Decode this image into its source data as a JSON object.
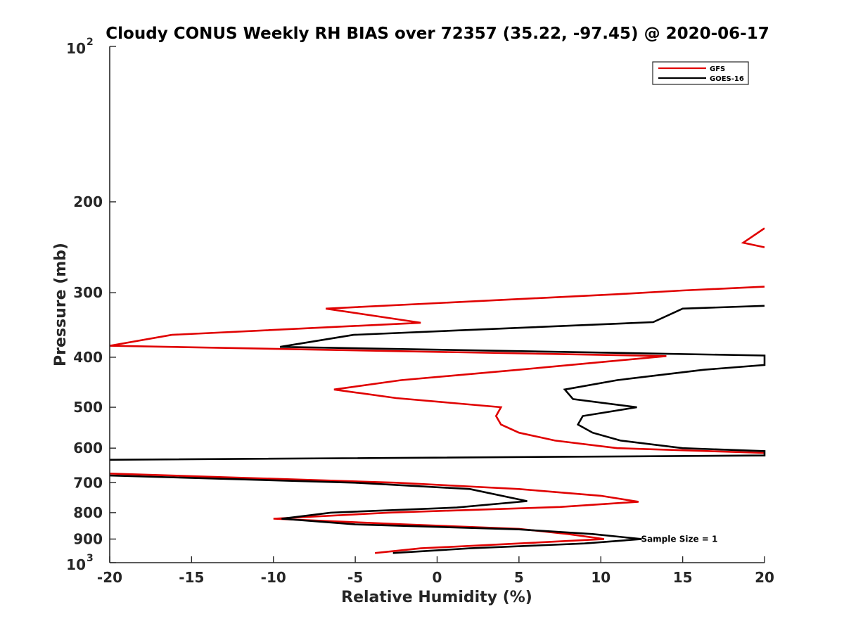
{
  "chart_data": {
    "type": "line",
    "title": "Cloudy CONUS Weekly RH BIAS over 72357 (35.22, -97.45) @ 2020-06-17",
    "xlabel": "Relative Humidity (%)",
    "ylabel": "Pressure (mb)",
    "xlim": [
      -20,
      20
    ],
    "ylim": [
      100,
      1000
    ],
    "y_scale": "log",
    "y_reversed": true,
    "grid": false,
    "legend_position": "top-right",
    "x_ticks": [
      "-20",
      "-15",
      "-10",
      "-5",
      "0",
      "5",
      "10",
      "15",
      "20"
    ],
    "y_ticks": [
      "200",
      "300",
      "400",
      "500",
      "600",
      "700",
      "800",
      "900"
    ],
    "y_tick_values": [
      200,
      300,
      400,
      500,
      600,
      700,
      800,
      900
    ],
    "y_limit_labels": [
      {
        "base": "10",
        "exp": "2",
        "value": 100
      },
      {
        "base": "10",
        "exp": "3",
        "value": 1000
      }
    ],
    "annotation": {
      "text": "Sample Size = 1",
      "x": 12.5,
      "y": 900
    },
    "series": [
      {
        "name": "GFS",
        "color": "#e00000",
        "points": [
          [
            20,
            225
          ],
          [
            18.7,
            240
          ],
          [
            20,
            245
          ],
          [
            null,
            null
          ],
          [
            20,
            292
          ],
          [
            15,
            297
          ],
          [
            11,
            302
          ],
          [
            -6.8,
            322
          ],
          [
            -1.0,
            343
          ],
          [
            -16.2,
            362
          ],
          [
            -20,
            380
          ],
          [
            14,
            398
          ],
          [
            5,
            423
          ],
          [
            -2.2,
            443
          ],
          [
            -6.3,
            462
          ],
          [
            -2.5,
            480
          ],
          [
            3.9,
            500
          ],
          [
            3.6,
            520
          ],
          [
            3.9,
            540
          ],
          [
            5,
            560
          ],
          [
            7.2,
            580
          ],
          [
            11,
            600
          ],
          [
            20,
            613
          ],
          [
            null,
            null
          ],
          [
            -20,
            672
          ],
          [
            -2.5,
            700
          ],
          [
            5,
            720
          ],
          [
            10,
            742
          ],
          [
            12.3,
            762
          ],
          [
            7.5,
            780
          ],
          [
            -3,
            800
          ],
          [
            -10,
            822
          ],
          [
            -2,
            843
          ],
          [
            5,
            860
          ],
          [
            8,
            880
          ],
          [
            10.2,
            900
          ],
          [
            5,
            918
          ],
          [
            -1,
            938
          ],
          [
            -3.8,
            958
          ]
        ]
      },
      {
        "name": "GOES-16",
        "color": "#000000",
        "points": [
          [
            20,
            318
          ],
          [
            15,
            322
          ],
          [
            13.2,
            342
          ],
          [
            -5.1,
            362
          ],
          [
            -9.6,
            382
          ],
          [
            20,
            397
          ],
          [
            20,
            414
          ],
          [
            16.3,
            423
          ],
          [
            11,
            443
          ],
          [
            7.8,
            462
          ],
          [
            8.3,
            482
          ],
          [
            12.2,
            500
          ],
          [
            8.9,
            520
          ],
          [
            8.6,
            540
          ],
          [
            9.5,
            560
          ],
          [
            11.2,
            580
          ],
          [
            15,
            600
          ],
          [
            20,
            608
          ],
          [
            20,
            620
          ],
          [
            -20,
            632
          ],
          [
            null,
            null
          ],
          [
            -20,
            678
          ],
          [
            -5,
            700
          ],
          [
            2,
            720
          ],
          [
            5.5,
            760
          ],
          [
            1.2,
            782
          ],
          [
            -6.5,
            800
          ],
          [
            -9.5,
            822
          ],
          [
            -5,
            843
          ],
          [
            5,
            862
          ],
          [
            9.5,
            880
          ],
          [
            12.5,
            900
          ],
          [
            9,
            918
          ],
          [
            2,
            938
          ],
          [
            -2.7,
            958
          ]
        ]
      }
    ]
  }
}
